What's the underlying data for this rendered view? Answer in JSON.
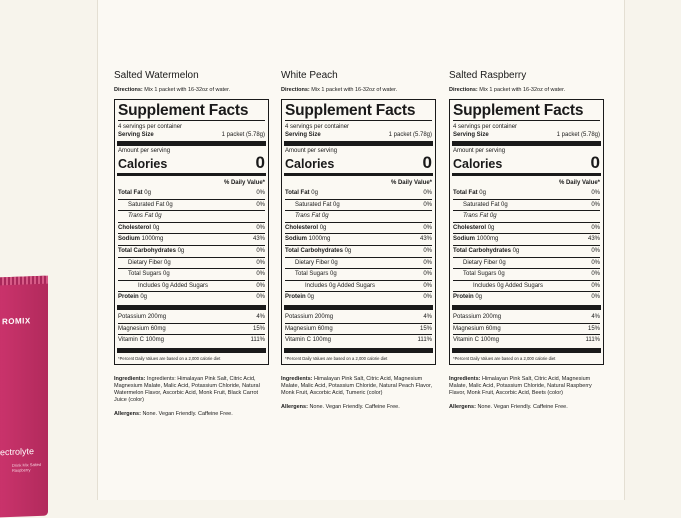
{
  "packet": {
    "brand": "ROMIX",
    "product": "ectrolyte",
    "small": "Drink Mix Salted Raspberry"
  },
  "columns": [
    {
      "flavor": "Salted Watermelon",
      "directions_label": "Directions:",
      "directions": "Mix 1 packet with 16-32oz of water.",
      "facts": {
        "title": "Supplement Facts",
        "servings": "4 servings per container",
        "serving_size_label": "Serving Size",
        "serving_size_value": "1 packet (5.78g)",
        "amount_per_serving": "Amount per serving",
        "calories_label": "Calories",
        "calories_value": "0",
        "dv_header": "% Daily Value*",
        "rows": [
          {
            "name": "Total Fat",
            "amount": "0g",
            "dv": "0%"
          },
          {
            "name": "Saturated Fat",
            "amount": "0g",
            "dv": "0%"
          },
          {
            "name": "Trans Fat",
            "amount": "0g",
            "dv": ""
          },
          {
            "name": "Cholesterol",
            "amount": "0g",
            "dv": "0%"
          },
          {
            "name": "Sodium",
            "amount": "1000mg",
            "dv": "43%"
          },
          {
            "name": "Total Carbohydrates",
            "amount": "0g",
            "dv": "0%"
          },
          {
            "name": "Dietary Fiber",
            "amount": "0g",
            "dv": "0%"
          },
          {
            "name": "Total Sugars",
            "amount": "0g",
            "dv": "0%"
          },
          {
            "name": "Includes 0g Added Sugars",
            "amount": "",
            "dv": "0%"
          },
          {
            "name": "Protein",
            "amount": "0g",
            "dv": "0%"
          }
        ],
        "minerals": [
          {
            "name": "Potassium",
            "amount": "200mg",
            "dv": "4%"
          },
          {
            "name": "Magnesium",
            "amount": "60mg",
            "dv": "15%"
          },
          {
            "name": "Vitamin C",
            "amount": "100mg",
            "dv": "111%"
          }
        ],
        "footnote": "*Percent Daily Values are based on a 2,000 calorie diet"
      },
      "ingredients_label": "Ingredients:",
      "ingredients": "Ingredients: Himalayan Pink Salt, Citric Acid, Magnesium Malate, Malic Acid, Potassium Chloride, Natural Watermelon Flavor, Ascorbic Acid, Monk Fruit, Black Carrot Juice (color)",
      "allergens_label": "Allergens:",
      "allergens": "None. Vegan Friendly. Caffeine Free."
    },
    {
      "flavor": "White Peach",
      "directions_label": "Directions:",
      "directions": "Mix 1 packet with 16-32oz of water.",
      "facts": {
        "title": "Supplement Facts",
        "servings": "4 servings per container",
        "serving_size_label": "Serving Size",
        "serving_size_value": "1 packet (5.78g)",
        "amount_per_serving": "Amount per serving",
        "calories_label": "Calories",
        "calories_value": "0",
        "dv_header": "% Daily Value*",
        "rows": [
          {
            "name": "Total Fat",
            "amount": "0g",
            "dv": "0%"
          },
          {
            "name": "Saturated Fat",
            "amount": "0g",
            "dv": "0%"
          },
          {
            "name": "Trans Fat",
            "amount": "0g",
            "dv": ""
          },
          {
            "name": "Cholesterol",
            "amount": "0g",
            "dv": "0%"
          },
          {
            "name": "Sodium",
            "amount": "1000mg",
            "dv": "43%"
          },
          {
            "name": "Total Carbohydrates",
            "amount": "0g",
            "dv": "0%"
          },
          {
            "name": "Dietary Fiber",
            "amount": "0g",
            "dv": "0%"
          },
          {
            "name": "Total Sugars",
            "amount": "0g",
            "dv": "0%"
          },
          {
            "name": "Includes 0g Added Sugars",
            "amount": "",
            "dv": "0%"
          },
          {
            "name": "Protein",
            "amount": "0g",
            "dv": "0%"
          }
        ],
        "minerals": [
          {
            "name": "Potassium",
            "amount": "200mg",
            "dv": "4%"
          },
          {
            "name": "Magnesium",
            "amount": "60mg",
            "dv": "15%"
          },
          {
            "name": "Vitamin C",
            "amount": "100mg",
            "dv": "111%"
          }
        ],
        "footnote": "*Percent Daily Values are based on a 2,000 calorie diet"
      },
      "ingredients_label": "Ingredients:",
      "ingredients": "Himalayan Pink Salt, Citric Acid, Magnesium Malate, Malic Acid, Potassium Chloride, Natural Peach Flavor, Monk Fruit, Ascorbic Acid, Tumeric (color)",
      "allergens_label": "Allergens:",
      "allergens": "None. Vegan Friendly. Caffeine Free."
    },
    {
      "flavor": "Salted Raspberry",
      "directions_label": "Directions:",
      "directions": "Mix 1 packet with 16-32oz of water.",
      "facts": {
        "title": "Supplement Facts",
        "servings": "4 servings per container",
        "serving_size_label": "Serving Size",
        "serving_size_value": "1 packet (5.78g)",
        "amount_per_serving": "Amount per serving",
        "calories_label": "Calories",
        "calories_value": "0",
        "dv_header": "% Daily Value*",
        "rows": [
          {
            "name": "Total Fat",
            "amount": "0g",
            "dv": "0%"
          },
          {
            "name": "Saturated Fat",
            "amount": "0g",
            "dv": "0%"
          },
          {
            "name": "Trans Fat",
            "amount": "0g",
            "dv": ""
          },
          {
            "name": "Cholesterol",
            "amount": "0g",
            "dv": "0%"
          },
          {
            "name": "Sodium",
            "amount": "1000mg",
            "dv": "43%"
          },
          {
            "name": "Total Carbohydrates",
            "amount": "0g",
            "dv": "0%"
          },
          {
            "name": "Dietary Fiber",
            "amount": "0g",
            "dv": "0%"
          },
          {
            "name": "Total Sugars",
            "amount": "0g",
            "dv": "0%"
          },
          {
            "name": "Includes 0g Added Sugars",
            "amount": "",
            "dv": "0%"
          },
          {
            "name": "Protein",
            "amount": "0g",
            "dv": "0%"
          }
        ],
        "minerals": [
          {
            "name": "Potassium",
            "amount": "200mg",
            "dv": "4%"
          },
          {
            "name": "Magnesium",
            "amount": "60mg",
            "dv": "15%"
          },
          {
            "name": "Vitamin C",
            "amount": "100mg",
            "dv": "111%"
          }
        ],
        "footnote": "*Percent Daily Values are based on a 2,000 calorie diet"
      },
      "ingredients_label": "Ingredients:",
      "ingredients": "Himalayan Pink Salt, Citric Acid, Magnesium Malate, Malic Acid, Potassium Chloride, Natural Raspberry Flavor, Monk Fruit, Ascorbic Acid, Beets (color)",
      "allergens_label": "Allergens:",
      "allergens": "None. Vegan Friendly. Caffeine Free."
    }
  ]
}
